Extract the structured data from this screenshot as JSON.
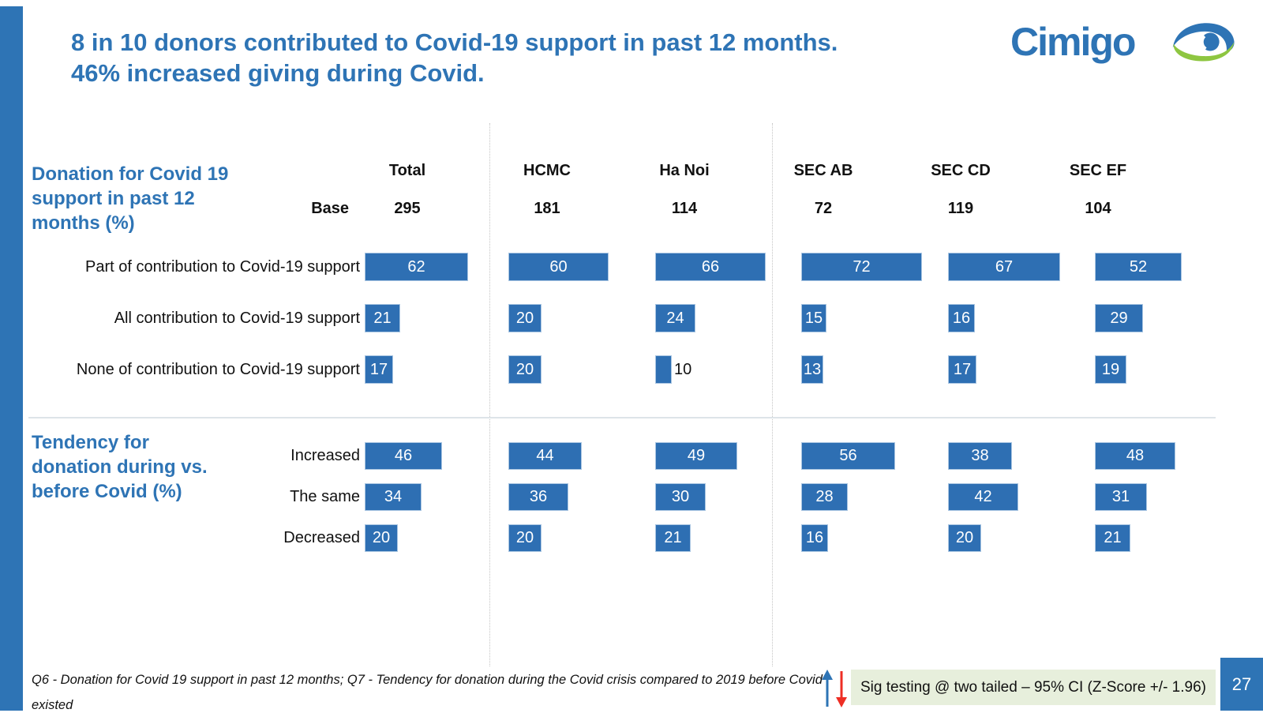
{
  "colors": {
    "accent_blue": "#2e74b5",
    "bar_blue": "#2e6fb3",
    "logo_green": "#8ec641",
    "sig_box_bg": "#e7efdc",
    "arrow_red": "#ee2e24",
    "ink": "#111111"
  },
  "header": {
    "title_line1": "8 in 10 donors contributed to Covid-19 support in past 12 months.",
    "title_line2": "46% increased giving during Covid.",
    "logo_text": "Cimigo"
  },
  "footer": {
    "footnote_line1": "Q6 - Donation for Covid 19 support in past 12 months; Q7 - Tendency for donation during the Covid crisis compared to 2019 before Covid",
    "footnote_line2": "existed",
    "sig_note": "Sig testing @ two tailed – 95% CI (Z-Score +/- 1.96)",
    "page_number": "27"
  },
  "chart_data": {
    "type": "bar",
    "orientation": "horizontal",
    "unit": "%",
    "xlim": [
      0,
      100
    ],
    "base_label": "Base",
    "columns": [
      "Total",
      "HCMC",
      "Ha Noi",
      "SEC AB",
      "SEC CD",
      "SEC EF"
    ],
    "base": [
      295,
      181,
      114,
      72,
      119,
      104
    ],
    "sections": [
      {
        "label": "Donation for Covid 19 support in past 12 months (%)",
        "rows": [
          {
            "label": "Part of contribution to Covid-19 support",
            "values": [
              62,
              60,
              66,
              72,
              67,
              52
            ]
          },
          {
            "label": "All contribution to Covid-19 support",
            "values": [
              21,
              20,
              24,
              15,
              16,
              29
            ]
          },
          {
            "label": "None of contribution to Covid-19 support",
            "values": [
              17,
              20,
              10,
              13,
              17,
              19
            ]
          }
        ]
      },
      {
        "label": "Tendency for donation during vs. before Covid (%)",
        "rows": [
          {
            "label": "Increased",
            "values": [
              46,
              44,
              49,
              56,
              38,
              48
            ]
          },
          {
            "label": "The same",
            "values": [
              34,
              36,
              30,
              28,
              42,
              31
            ]
          },
          {
            "label": "Decreased",
            "values": [
              20,
              20,
              21,
              16,
              20,
              21
            ]
          }
        ]
      }
    ]
  }
}
